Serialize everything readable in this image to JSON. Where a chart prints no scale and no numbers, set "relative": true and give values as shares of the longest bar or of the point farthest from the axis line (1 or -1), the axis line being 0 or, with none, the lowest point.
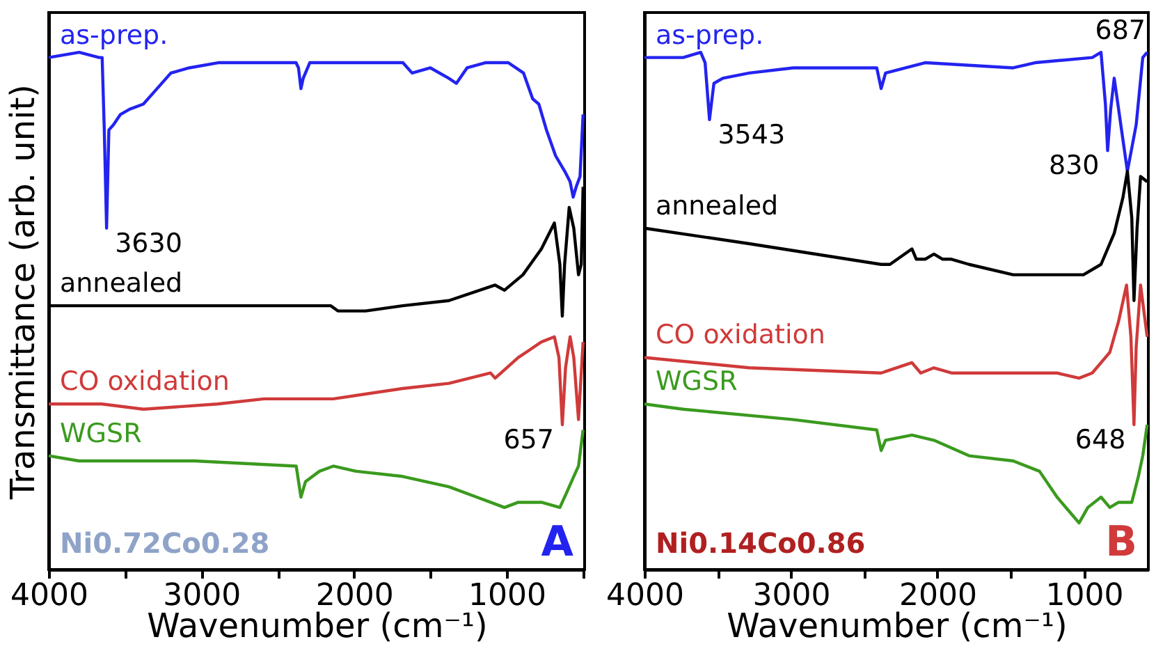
{
  "chart_data": [
    {
      "type": "line",
      "xlabel": "Wavenumber (cm⁻¹)",
      "ylabel": "Transmittance (arb. unit)",
      "relative": true,
      "grid": false,
      "tick_labels": "x",
      "marker": "none",
      "line_style": "solid",
      "xlim": [
        4000,
        490
      ],
      "xticks": [
        4000,
        {
          "value": 3500,
          "label": null
        },
        3000,
        {
          "value": 2500,
          "label": null
        },
        2000,
        {
          "value": 1500,
          "label": null
        },
        1000,
        {
          "value": 500,
          "label": null
        }
      ],
      "series": [
        {
          "name": "as-prep.",
          "color": "#2323f0",
          "x": [
            4000,
            3800,
            3670,
            3650,
            3636,
            3621,
            3606,
            3576,
            3530,
            3470,
            3380,
            3320,
            3200,
            3080,
            2890,
            2590,
            2380,
            2364,
            2348,
            2333,
            2290,
            2100,
            1680,
            1620,
            1500,
            1380,
            1330,
            1260,
            1140,
            990,
            890,
            830,
            790,
            740,
            680,
            620,
            585,
            565,
            545,
            520,
            500
          ],
          "values": [
            0.99,
            1.0,
            0.99,
            0.99,
            0.85,
            0.66,
            0.85,
            0.86,
            0.88,
            0.89,
            0.9,
            0.92,
            0.96,
            0.97,
            0.98,
            0.98,
            0.98,
            0.97,
            0.93,
            0.95,
            0.98,
            0.98,
            0.98,
            0.96,
            0.97,
            0.95,
            0.94,
            0.97,
            0.98,
            0.98,
            0.96,
            0.91,
            0.9,
            0.85,
            0.8,
            0.77,
            0.75,
            0.72,
            0.74,
            0.76,
            0.88
          ]
        },
        {
          "name": "annealed",
          "color": "#000000",
          "x": [
            4000,
            3500,
            2590,
            2152,
            2106,
            1985,
            1924,
            1682,
            1379,
            1076,
            1015,
            894,
            773,
            688,
            652,
            636,
            621,
            591,
            561,
            530,
            512,
            500
          ],
          "values": [
            0.51,
            0.51,
            0.51,
            0.51,
            0.5,
            0.5,
            0.5,
            0.51,
            0.52,
            0.55,
            0.54,
            0.57,
            0.62,
            0.67,
            0.59,
            0.49,
            0.59,
            0.7,
            0.66,
            0.57,
            0.59,
            0.74
          ]
        },
        {
          "name": "CO oxidation",
          "color": "#d03a3a",
          "x": [
            4000,
            3652,
            3379,
            2894,
            2590,
            2136,
            1682,
            1379,
            1106,
            1076,
            924,
            773,
            688,
            658,
            636,
            615,
            585,
            561,
            530,
            500
          ],
          "values": [
            0.32,
            0.32,
            0.31,
            0.32,
            0.33,
            0.33,
            0.35,
            0.36,
            0.38,
            0.37,
            0.41,
            0.44,
            0.45,
            0.41,
            0.28,
            0.39,
            0.45,
            0.41,
            0.29,
            0.44
          ]
        },
        {
          "name": "WGSR",
          "color": "#3a9a1e",
          "x": [
            4000,
            3803,
            3758,
            3652,
            3045,
            2379,
            2348,
            2318,
            2227,
            2136,
            1985,
            1682,
            1379,
            1197,
            1106,
            1015,
            924,
            773,
            652,
            606,
            561,
            530,
            500
          ],
          "values": [
            0.22,
            0.21,
            0.21,
            0.21,
            0.21,
            0.2,
            0.14,
            0.17,
            0.19,
            0.2,
            0.19,
            0.18,
            0.16,
            0.14,
            0.13,
            0.12,
            0.13,
            0.13,
            0.12,
            0.15,
            0.18,
            0.2,
            0.27
          ]
        }
      ],
      "annotations": [
        "Ni0.72Co0.28",
        "A",
        {
          "text": "3630",
          "x": 3621,
          "y": 0.66
        },
        {
          "text": "657",
          "x": 636,
          "y": 0.28
        }
      ]
    },
    {
      "type": "line",
      "xlabel": "Wavenumber (cm⁻¹)",
      "relative": true,
      "grid": false,
      "tick_labels": "x",
      "marker": "none",
      "line_style": "solid",
      "xlim": [
        4000,
        560
      ],
      "xticks": [
        4000,
        {
          "value": 3500,
          "label": null
        },
        3000,
        {
          "value": 2500,
          "label": null
        },
        2000,
        {
          "value": 1500,
          "label": null
        },
        1000
      ],
      "series": [
        {
          "name": "as-prep.",
          "color": "#2323f0",
          "x": [
            4000,
            3736,
            3616,
            3586,
            3556,
            3526,
            3465,
            3285,
            2985,
            2414,
            2384,
            2354,
            2084,
            1483,
            1333,
            943,
            883,
            853,
            838,
            817,
            793,
            763,
            703,
            643,
            598,
            568
          ],
          "values": [
            0.99,
            0.99,
            1.0,
            0.98,
            0.87,
            0.94,
            0.95,
            0.96,
            0.97,
            0.97,
            0.93,
            0.96,
            0.98,
            0.97,
            0.98,
            0.99,
            1.0,
            0.9,
            0.81,
            0.89,
            0.95,
            0.89,
            0.77,
            0.86,
            0.99,
            1.0
          ]
        },
        {
          "name": "annealed",
          "color": "#000000",
          "x": [
            4000,
            3285,
            2384,
            2324,
            2174,
            2144,
            2084,
            2024,
            1964,
            1904,
            1784,
            1483,
            1183,
            1003,
            883,
            793,
            733,
            703,
            673,
            658,
            637,
            613,
            568
          ],
          "values": [
            0.66,
            0.63,
            0.59,
            0.59,
            0.62,
            0.6,
            0.6,
            0.61,
            0.6,
            0.6,
            0.59,
            0.57,
            0.57,
            0.57,
            0.59,
            0.65,
            0.72,
            0.77,
            0.68,
            0.52,
            0.66,
            0.76,
            0.75
          ]
        },
        {
          "name": "CO oxidation",
          "color": "#d03a3a",
          "x": [
            4000,
            3285,
            2384,
            2174,
            2114,
            2024,
            1904,
            1483,
            1183,
            1033,
            943,
            823,
            763,
            709,
            679,
            658,
            643,
            613,
            568
          ],
          "values": [
            0.41,
            0.39,
            0.38,
            0.4,
            0.38,
            0.39,
            0.38,
            0.38,
            0.38,
            0.37,
            0.38,
            0.42,
            0.48,
            0.55,
            0.45,
            0.28,
            0.43,
            0.55,
            0.45
          ]
        },
        {
          "name": "WGSR",
          "color": "#3a9a1e",
          "x": [
            4000,
            3736,
            2985,
            2414,
            2384,
            2354,
            2174,
            2024,
            1784,
            1483,
            1303,
            1183,
            1093,
            1033,
            973,
            883,
            823,
            763,
            673,
            628,
            598,
            568
          ],
          "values": [
            0.32,
            0.31,
            0.29,
            0.27,
            0.23,
            0.25,
            0.26,
            0.25,
            0.22,
            0.21,
            0.19,
            0.14,
            0.11,
            0.09,
            0.12,
            0.14,
            0.12,
            0.13,
            0.13,
            0.18,
            0.22,
            0.28
          ]
        }
      ],
      "annotations": [
        "Ni0.14Co0.86",
        "B",
        {
          "text": "3543",
          "x": 3556,
          "y": 0.87
        },
        {
          "text": "830",
          "x": 838,
          "y": 0.81
        },
        "687",
        {
          "text": "648",
          "x": 658,
          "y": 0.28
        }
      ]
    }
  ]
}
